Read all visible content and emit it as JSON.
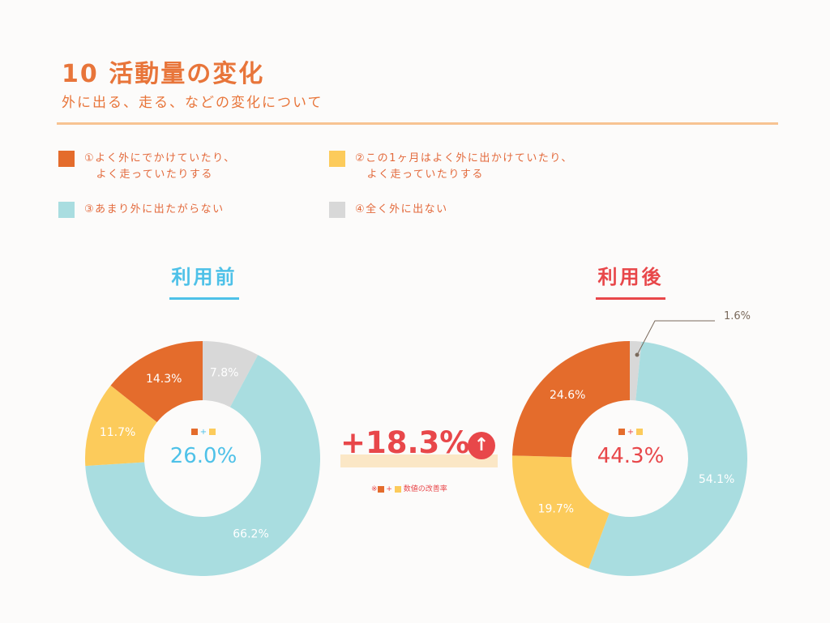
{
  "header": {
    "title": "10 活動量の変化",
    "subtitle": "外に出る、走る、などの変化について"
  },
  "legend": [
    {
      "label": "①よく外にでかけていたり、\n　よく走っていたりする",
      "color": "#e46c2c"
    },
    {
      "label": "②この1ヶ月はよく外に出かけていたり、\n　よく走っていたりする",
      "color": "#fccb5b"
    },
    {
      "label": "③あまり外に出たがらない",
      "color": "#a9dde0"
    },
    {
      "label": "④全く外に出ない",
      "color": "#d8d8d8"
    }
  ],
  "chart_data": [
    {
      "type": "pie",
      "title": "利用前",
      "title_color": "#4ec1e8",
      "center_value": "26.0%",
      "slices": [
        {
          "legend_index": 0,
          "value": 14.3,
          "label": "14.3%"
        },
        {
          "legend_index": 1,
          "value": 11.7,
          "label": "11.7%"
        },
        {
          "legend_index": 2,
          "value": 66.2,
          "label": "66.2%"
        },
        {
          "legend_index": 3,
          "value": 7.8,
          "label": "7.8%"
        }
      ]
    },
    {
      "type": "pie",
      "title": "利用後",
      "title_color": "#e8474a",
      "center_value": "44.3%",
      "slices": [
        {
          "legend_index": 0,
          "value": 24.6,
          "label": "24.6%"
        },
        {
          "legend_index": 1,
          "value": 19.7,
          "label": "19.7%"
        },
        {
          "legend_index": 2,
          "value": 54.1,
          "label": "54.1%"
        },
        {
          "legend_index": 3,
          "value": 1.6,
          "label": "1.6%"
        }
      ]
    }
  ],
  "center_key_plus": "+",
  "improvement": {
    "value": "+18.3%",
    "arrow": "↑",
    "note_prefix": "※",
    "note_plus": "+",
    "note_suffix": "数値の改善率"
  }
}
